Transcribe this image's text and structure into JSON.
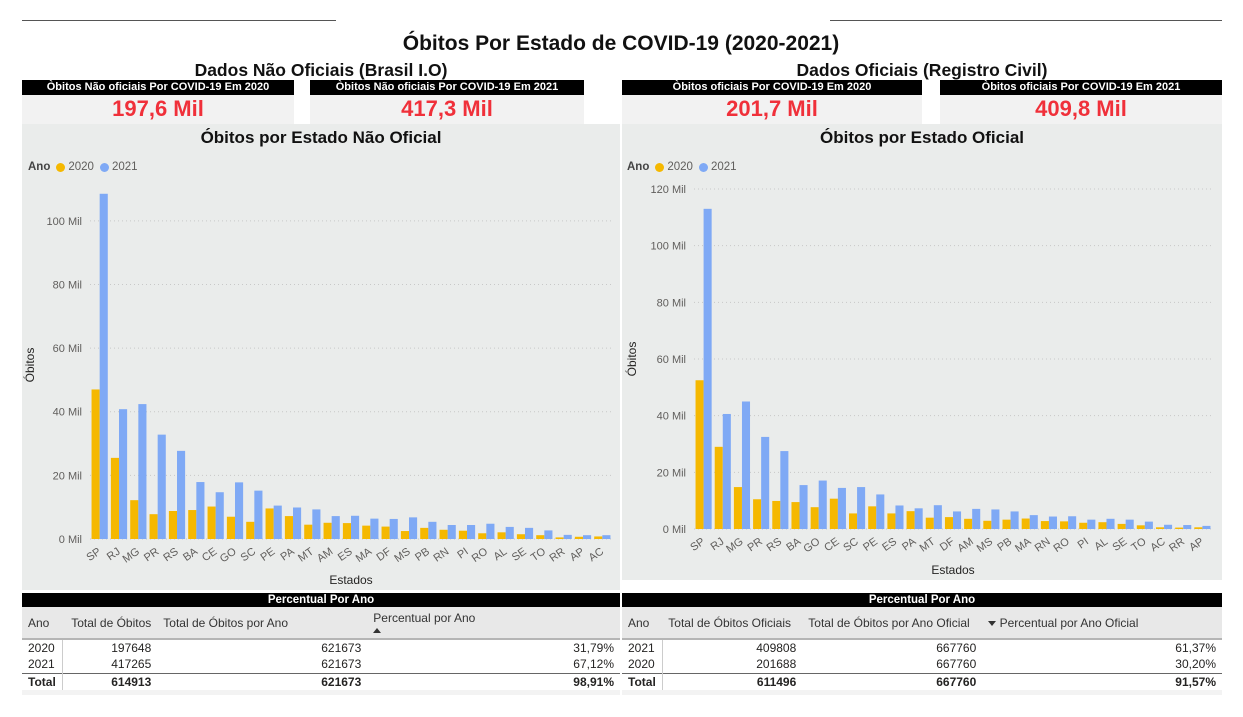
{
  "page": {
    "title": "Óbitos Por Estado de COVID-19 (2020-2021)",
    "left_section": "Dados Não Oficiais (Brasil I.O)",
    "right_section": "Dados Oficiais (Registro Civil)"
  },
  "kpis": {
    "unofficial_2020": {
      "label": "Òbitos Não oficiais Por COVID-19 Em 2020",
      "value": "197,6 Mil"
    },
    "unofficial_2021": {
      "label": "Òbitos Não oficiais Por COVID-19 Em 2021",
      "value": "417,3 Mil"
    },
    "official_2020": {
      "label": "Òbitos oficiais Por COVID-19 Em 2020",
      "value": "201,7 Mil"
    },
    "official_2021": {
      "label": "Òbitos oficiais Por COVID-19 Em 2021",
      "value": "409,8 Mil"
    }
  },
  "colors": {
    "y2020": "#F5B800",
    "y2021": "#7FA9F5",
    "kpi_value": "#F0303A",
    "panel_bg": "#EAECEB"
  },
  "chart_data": [
    {
      "type": "bar",
      "title": "Óbitos por Estado Não Oficial",
      "legend_title": "Ano",
      "legend_position": "top-left",
      "xlabel": "Estados",
      "ylabel": "Óbitos",
      "ylim": [
        0,
        110000
      ],
      "yticks": [
        0,
        20000,
        40000,
        60000,
        80000,
        100000
      ],
      "ytick_labels": [
        "0 Mil",
        "20 Mil",
        "40 Mil",
        "60 Mil",
        "80 Mil",
        "100 Mil"
      ],
      "grid": true,
      "categories": [
        "SP",
        "RJ",
        "MG",
        "PR",
        "RS",
        "BA",
        "CE",
        "GO",
        "SC",
        "PE",
        "PA",
        "MT",
        "AM",
        "ES",
        "MA",
        "DF",
        "MS",
        "PB",
        "RN",
        "PI",
        "RO",
        "AL",
        "SE",
        "TO",
        "RR",
        "AP",
        "AC"
      ],
      "series": [
        {
          "name": "2020",
          "values": [
            47000,
            25500,
            12200,
            7800,
            8800,
            9100,
            10200,
            7000,
            5400,
            9600,
            7200,
            4500,
            5100,
            5000,
            4200,
            3900,
            2500,
            3500,
            2900,
            2600,
            1800,
            2100,
            1500,
            1200,
            500,
            700,
            800
          ]
        },
        {
          "name": "2021",
          "values": [
            108500,
            40800,
            42400,
            32800,
            27700,
            17900,
            14700,
            17800,
            15200,
            10500,
            9900,
            9300,
            7200,
            7300,
            6400,
            6300,
            6800,
            5400,
            4400,
            4400,
            4800,
            3800,
            3500,
            2700,
            1300,
            1200,
            1200
          ]
        }
      ]
    },
    {
      "type": "bar",
      "title": "Óbitos por Estado Oficial",
      "legend_title": "Ano",
      "legend_position": "top-left",
      "xlabel": "Estados",
      "ylabel": "Óbitos",
      "ylim": [
        0,
        120000
      ],
      "yticks": [
        0,
        20000,
        40000,
        60000,
        80000,
        100000,
        120000
      ],
      "ytick_labels": [
        "0 Mil",
        "20 Mil",
        "40 Mil",
        "60 Mil",
        "80 Mil",
        "100 Mil",
        "120 Mil"
      ],
      "grid": true,
      "categories": [
        "SP",
        "RJ",
        "MG",
        "PR",
        "RS",
        "BA",
        "GO",
        "CE",
        "SC",
        "PE",
        "ES",
        "PA",
        "MT",
        "DF",
        "AM",
        "MS",
        "PB",
        "MA",
        "RN",
        "RO",
        "PI",
        "AL",
        "SE",
        "TO",
        "AC",
        "RR",
        "AP"
      ],
      "series": [
        {
          "name": "2020",
          "values": [
            52500,
            29000,
            14800,
            10500,
            9900,
            9500,
            7700,
            10700,
            5500,
            8000,
            5500,
            6300,
            4000,
            4200,
            3600,
            2900,
            3300,
            3700,
            2800,
            2700,
            2200,
            2400,
            1800,
            1300,
            600,
            500,
            600
          ]
        },
        {
          "name": "2021",
          "values": [
            113000,
            40600,
            45000,
            32500,
            27500,
            15500,
            17100,
            14500,
            14800,
            12200,
            8300,
            7300,
            8400,
            6200,
            7100,
            6900,
            6200,
            4900,
            4400,
            4500,
            3300,
            3600,
            3300,
            2600,
            1500,
            1400,
            1100
          ]
        }
      ]
    }
  ],
  "tables": {
    "left": {
      "title": "Percentual Por Ano",
      "headers": [
        "Ano",
        "Total de Óbitos",
        "Total de Óbitos por Ano",
        "Percentual por Ano"
      ],
      "rows": [
        [
          "2020",
          "197648",
          "621673",
          "31,79%"
        ],
        [
          "2021",
          "417265",
          "621673",
          "67,12%"
        ]
      ],
      "total": [
        "Total",
        "614913",
        "621673",
        "98,91%"
      ]
    },
    "right": {
      "title": "Percentual Por Ano",
      "headers": [
        "Ano",
        "Total de Óbitos Oficiais",
        "Total de Óbitos por Ano Oficial",
        "Percentual por Ano Oficial"
      ],
      "rows": [
        [
          "2021",
          "409808",
          "667760",
          "61,37%"
        ],
        [
          "2020",
          "201688",
          "667760",
          "30,20%"
        ]
      ],
      "total": [
        "Total",
        "611496",
        "667760",
        "91,57%"
      ]
    }
  }
}
